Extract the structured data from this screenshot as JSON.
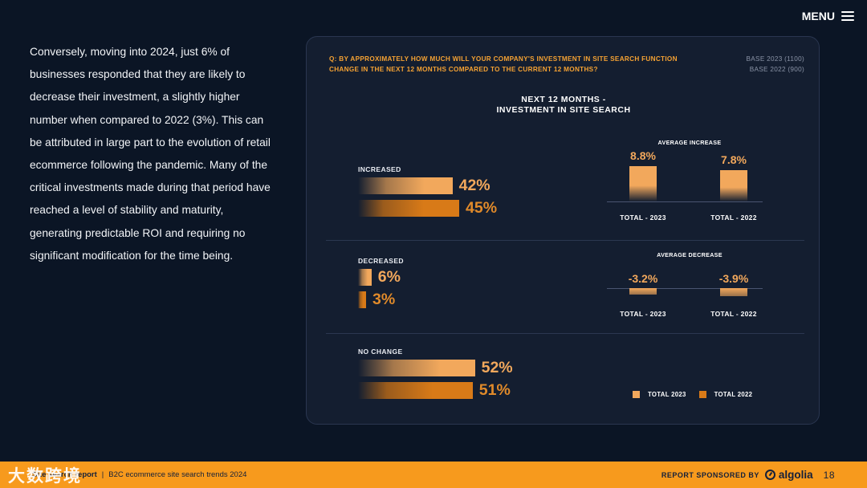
{
  "header": {
    "menu_label": "MENU"
  },
  "body_text": "Conversely, moving into 2024, just 6% of businesses responded that they are likely to decrease their investment, a slightly higher number when compared to 2022 (3%). This can be attributed in large part to the evolution of retail ecommerce following the pandemic. Many of the critical investments made during that period have reached a level of stability and maturity, generating predictable ROI and requiring no significant modification for the time being.",
  "panel": {
    "question": "Q: By approximately how much will your company's investment in site search function change in the next 12 months compared to the current 12 months?",
    "base_2023": "BASE 2023 (1100)",
    "base_2022": "BASE 2022 (900)"
  },
  "chart_data": {
    "type": "bar",
    "orientation": "horizontal",
    "title_line1": "NEXT 12 MONTHS -",
    "title_line2": "INVESTMENT IN SITE SEARCH",
    "categories": [
      "INCREASED",
      "DECREASED",
      "NO CHANGE"
    ],
    "series": [
      {
        "name": "TOTAL 2023",
        "values": [
          42,
          6,
          52
        ],
        "labels": [
          "42%",
          "6%",
          "52%"
        ],
        "color": "#f2a85c"
      },
      {
        "name": "TOTAL 2022",
        "values": [
          45,
          3,
          51
        ],
        "labels": [
          "45%",
          "3%",
          "51%"
        ],
        "color": "#d87a18"
      }
    ],
    "unit": "%",
    "averages": [
      {
        "title": "AVERAGE INCREASE",
        "items": [
          {
            "label": "TOTAL - 2023",
            "value": 8.8,
            "display": "8.8%"
          },
          {
            "label": "TOTAL - 2022",
            "value": 7.8,
            "display": "7.8%"
          }
        ]
      },
      {
        "title": "AVERAGE DECREASE",
        "items": [
          {
            "label": "TOTAL - 2023",
            "value": -3.2,
            "display": "-3.2%"
          },
          {
            "label": "TOTAL - 2022",
            "value": -3.9,
            "display": "-3.9%"
          }
        ]
      }
    ],
    "legend": [
      {
        "label": "TOTAL 2023",
        "color": "#f2a85c"
      },
      {
        "label": "TOTAL 2022",
        "color": "#d87a18"
      }
    ]
  },
  "footer": {
    "report_title": "Site search report",
    "subtitle": "B2C ecommerce site search trends 2024",
    "separator": "|",
    "sponsor_label": "REPORT SPONSORED BY",
    "sponsor_name": "algolia",
    "page_number": "18",
    "watermark": "大数跨境"
  },
  "colors": {
    "accent": "#f5a233",
    "background": "#0b1525",
    "panel": "#141e30",
    "footer": "#f79a1d"
  }
}
